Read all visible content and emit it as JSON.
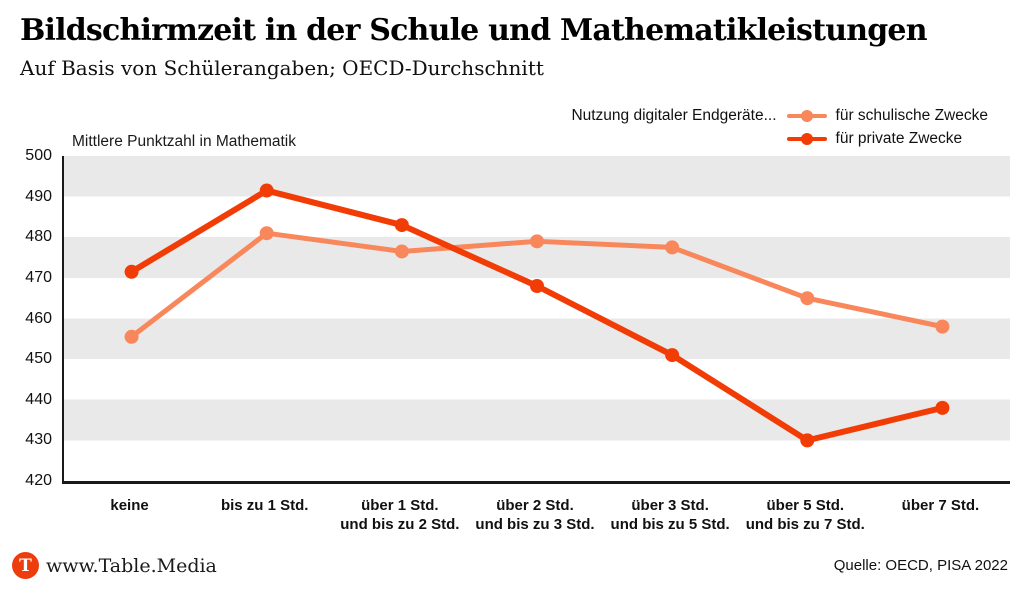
{
  "header": {
    "title": "Bildschirmzeit in der Schule und Mathematikleistungen",
    "subtitle": "Auf Basis von Schülerangaben; OECD-Durchschnitt"
  },
  "legend": {
    "intro": "Nutzung digitaler Endgeräte...",
    "items": [
      {
        "label": "für schulische Zwecke",
        "color": "#f8875c"
      },
      {
        "label": "für private Zwecke",
        "color": "#f23c06"
      }
    ]
  },
  "chart_data": {
    "type": "line",
    "title": "Bildschirmzeit in der Schule und Mathematikleistungen",
    "subtitle": "Auf Basis von Schülerangaben; OECD-Durchschnitt",
    "ylabel": "Mittlere Punktzahl in Mathematik",
    "xlabel": "",
    "ylim": [
      420,
      500
    ],
    "yticks": [
      500,
      490,
      480,
      470,
      460,
      450,
      440,
      430,
      420
    ],
    "grid": "striped-horizontal-bands",
    "stripe_color": "#e9e9e9",
    "legend_position": "top-right",
    "categories": [
      "keine",
      "bis zu 1 Std.",
      "über 1 Std.\nund bis zu 2 Std.",
      "über 2 Std.\nund bis zu 3 Std.",
      "über 3 Std.\nund bis zu 5 Std.",
      "über 5 Std.\nund bis zu 7 Std.",
      "über 7 Std."
    ],
    "series": [
      {
        "name": "für schulische Zwecke",
        "color": "#f8875c",
        "values": [
          455.5,
          481,
          476.5,
          479,
          477.5,
          465,
          458
        ]
      },
      {
        "name": "für private Zwecke",
        "color": "#f23c06",
        "values": [
          471.5,
          491.5,
          483,
          468,
          451,
          430,
          438
        ]
      }
    ]
  },
  "footer": {
    "logo_letter": "T",
    "logo_color": "#ee3d0c",
    "brand": "www.Table.Media",
    "source": "Quelle: OECD, PISA 2022"
  }
}
